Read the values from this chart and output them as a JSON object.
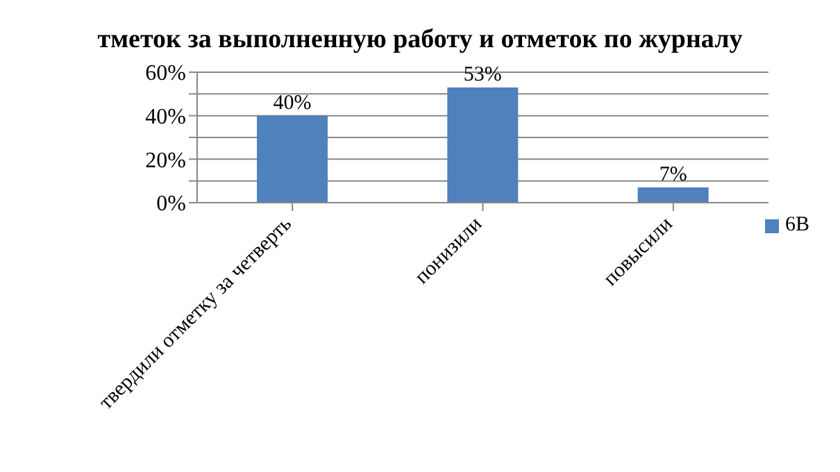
{
  "chart_data": {
    "type": "bar",
    "title": "тметок за выполненную работу и отметок по журналу",
    "categories": [
      "твердили отметку за четверть",
      "понизили",
      "повысили"
    ],
    "series": [
      {
        "name": "6В",
        "color": "#4f81bd",
        "values": [
          40,
          53,
          7
        ],
        "value_labels": [
          "40%",
          "53%",
          "7%"
        ]
      }
    ],
    "ylim": [
      0,
      60
    ],
    "yticks": [
      {
        "value": 0,
        "label": "0%"
      },
      {
        "value": 10,
        "label": null
      },
      {
        "value": 20,
        "label": "20%"
      },
      {
        "value": 30,
        "label": null
      },
      {
        "value": 40,
        "label": "40%"
      },
      {
        "value": 50,
        "label": null
      },
      {
        "value": 60,
        "label": "60%"
      }
    ],
    "grid": "y",
    "legend": "right"
  }
}
